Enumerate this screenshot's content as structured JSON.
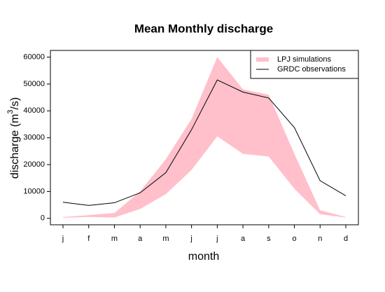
{
  "chart_data": {
    "type": "line",
    "title": "Mean Monthly discharge",
    "xlabel": "month",
    "ylabel": [
      "discharge (m",
      "3",
      "/s)"
    ],
    "categories": [
      "j",
      "f",
      "m",
      "a",
      "m",
      "j",
      "j",
      "a",
      "s",
      "o",
      "n",
      "d"
    ],
    "series": [
      {
        "name": "LPJ simulations",
        "color": "#ffc0cb",
        "lower": [
          200,
          500,
          300,
          3500,
          9000,
          18000,
          30500,
          24000,
          23000,
          11000,
          1500,
          300
        ],
        "upper": [
          500,
          1200,
          2000,
          10000,
          22000,
          37000,
          60000,
          48000,
          46000,
          24000,
          3000,
          500
        ]
      },
      {
        "name": "GRDC observations",
        "color": "#000000",
        "values": [
          6000,
          4800,
          5800,
          9500,
          17000,
          33000,
          51500,
          47000,
          44800,
          33800,
          14000,
          8400
        ]
      }
    ],
    "ylim": [
      -2400,
      62500
    ],
    "yticks": [
      0,
      10000,
      20000,
      30000,
      40000,
      50000,
      60000
    ],
    "legend": "top-right",
    "grid": false
  }
}
